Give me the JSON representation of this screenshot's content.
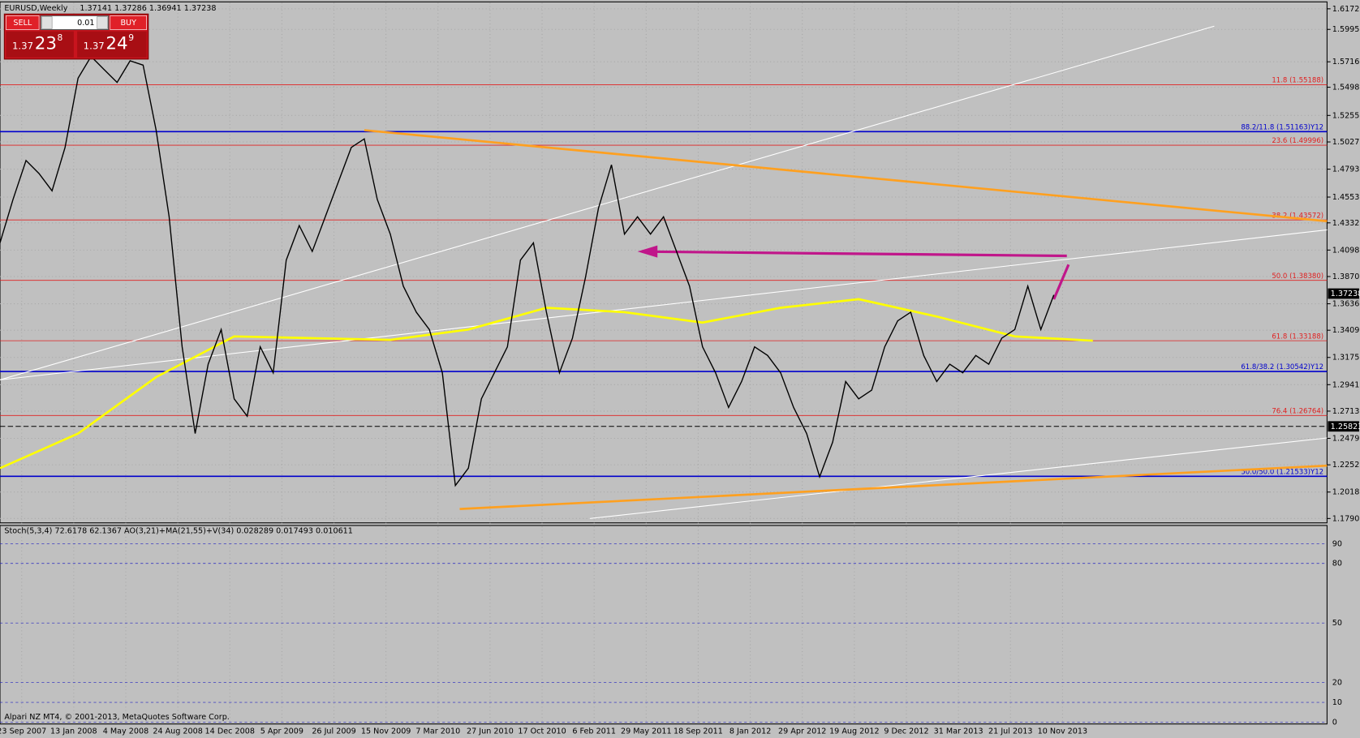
{
  "window": {
    "title": "EURUSD,Weekly",
    "ohlc": "1.37141 1.37286 1.36941 1.37238"
  },
  "trade_panel": {
    "sell": "SELL",
    "buy": "BUY",
    "lot": "0.01",
    "sell_big": "1.37",
    "sell_pips": "23",
    "sell_frac": "8",
    "buy_big": "1.37",
    "buy_pips": "24",
    "buy_frac": "9"
  },
  "chart_data": {
    "type": "line",
    "ylim": [
      1.1753,
      1.6224
    ],
    "yticks": [
      {
        "value": 1.6172,
        "label": "1.61720"
      },
      {
        "value": 1.5995,
        "label": "1.59950"
      },
      1.57165,
      {
        "value": 1.5498,
        "label": "1.54980"
      },
      1.52555,
      1.50275,
      1.47935,
      1.45535,
      {
        "value": 1.4332,
        "label": "1.43320"
      },
      {
        "value": 1.4098,
        "label": "1.40980"
      },
      1.38705,
      1.36365,
      {
        "value": 1.3409,
        "label": "1.34090"
      },
      {
        "value": 1.3175,
        "label": "1.31750"
      },
      {
        "value": 1.2941,
        "label": "1.29410"
      },
      1.27135,
      1.24795,
      {
        "value": 1.2252,
        "label": "1.22520"
      },
      {
        "value": 1.2018,
        "label": "1.20180"
      },
      1.17905
    ],
    "x_labels": [
      "23 Sep 2007",
      "13 Jan 2008",
      "4 May 2008",
      "24 Aug 2008",
      "14 Dec 2008",
      "5 Apr 2009",
      "26 Jul 2009",
      "15 Nov 2009",
      "7 Mar 2010",
      "27 Jun 2010",
      "17 Oct 2010",
      "6 Feb 2011",
      "29 May 2011",
      "18 Sep 2011",
      "8 Jan 2012",
      "29 Apr 2012",
      "19 Aug 2012",
      "9 Dec 2012",
      "31 Mar 2013",
      "21 Jul 2013",
      "10 Nov 2013"
    ],
    "price": {
      "color": "#000000",
      "values": [
        1.416,
        1.4533,
        1.4868,
        1.4756,
        1.4607,
        1.498,
        1.5576,
        1.5762,
        1.565,
        1.5539,
        1.5725,
        1.5688,
        1.5129,
        1.4384,
        1.3266,
        1.2521,
        1.3117,
        1.3415,
        1.2819,
        1.267,
        1.3266,
        1.3043,
        1.4011,
        1.4309,
        1.4086,
        1.4384,
        1.4682,
        1.498,
        1.5054,
        1.4533,
        1.4235,
        1.3788,
        1.3564,
        1.3415,
        1.3043,
        1.2074,
        1.2223,
        1.2819,
        1.3043,
        1.3266,
        1.4011,
        1.416,
        1.3564,
        1.3043,
        1.3341,
        1.3862,
        1.4458,
        1.4831,
        1.4235,
        1.4384,
        1.4235,
        1.4384,
        1.4086,
        1.3788,
        1.3266,
        1.3043,
        1.2745,
        1.2968,
        1.3266,
        1.3192,
        1.3043,
        1.2745,
        1.2521,
        1.2149,
        1.2447,
        1.2968,
        1.2819,
        1.2894,
        1.3266,
        1.349,
        1.3564,
        1.3192,
        1.2968,
        1.3117,
        1.3043,
        1.3192,
        1.3117,
        1.3341,
        1.3415,
        1.3788,
        1.3415,
        1.3713
      ]
    },
    "ma": {
      "color": "#ffff00",
      "values": [
        1.2223,
        1.2521,
        1.3006,
        1.3356,
        1.3341,
        1.3326,
        1.3415,
        1.3602,
        1.3564,
        1.3475,
        1.3602,
        1.3676,
        1.3527,
        1.3356,
        1.3319
      ]
    },
    "current_price": 1.37238,
    "marker_price": 1.25823,
    "levels": [
      {
        "label": "11.8 (1.55188)",
        "price": 1.55188,
        "color": "#e02020"
      },
      {
        "label": "88.2/11.8 (1.51163)Y12",
        "price": 1.51163,
        "color": "#0000cc"
      },
      {
        "label": "23.6 (1.49996)",
        "price": 1.49996,
        "color": "#e02020"
      },
      {
        "label": "38.2 (1.43572)",
        "price": 1.43572,
        "color": "#e02020"
      },
      {
        "label": "50.0 (1.38380)",
        "price": 1.3838,
        "color": "#e02020"
      },
      {
        "label": "61.8 (1.33188)",
        "price": 1.33188,
        "color": "#e02020"
      },
      {
        "label": "61.8/38.2 (1.30542)Y12",
        "price": 1.30542,
        "color": "#0000cc"
      },
      {
        "label": "76.4 (1.26764)",
        "price": 1.26764,
        "color": "#e02020"
      },
      {
        "label": "50.0/50.0 (1.21533)Y12",
        "price": 1.21533,
        "color": "#0000cc"
      }
    ]
  },
  "indicator": {
    "title": "Stoch(5,3,4) 72.6178 62.1367  AO(3,21)+MA(21,55)+V(34) 0.028289 0.017493 0.010611",
    "ylim": [
      0,
      100
    ],
    "yticks": [
      90,
      80,
      50,
      20,
      10,
      0
    ]
  },
  "copyright": "Alpari NZ MT4, © 2001-2013, MetaQuotes Software Corp."
}
